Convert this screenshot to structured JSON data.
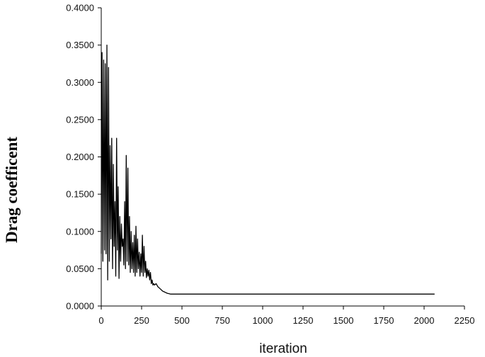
{
  "chart_data": {
    "type": "line",
    "title": "",
    "xlabel": "iteration",
    "ylabel": "Drag coefficent",
    "xlim": [
      0,
      2250
    ],
    "ylim": [
      0,
      0.4
    ],
    "xticks": [
      "0",
      "250",
      "500",
      "750",
      "1000",
      "1250",
      "1500",
      "1750",
      "2000",
      "2250"
    ],
    "yticks": [
      "0.0000",
      "0.0500",
      "0.1000",
      "0.1500",
      "0.2000",
      "0.2500",
      "0.3000",
      "0.3500",
      "0.4000"
    ],
    "grid": false,
    "series": [
      {
        "name": "",
        "color": "#000000",
        "x": [
          0,
          5,
          10,
          15,
          20,
          25,
          30,
          35,
          40,
          45,
          50,
          55,
          60,
          65,
          70,
          75,
          80,
          85,
          90,
          95,
          100,
          105,
          110,
          115,
          120,
          125,
          130,
          135,
          140,
          145,
          150,
          155,
          160,
          165,
          170,
          175,
          180,
          185,
          190,
          195,
          200,
          205,
          210,
          215,
          220,
          225,
          230,
          235,
          240,
          245,
          250,
          255,
          260,
          265,
          270,
          275,
          280,
          285,
          290,
          295,
          300,
          305,
          310,
          315,
          320,
          325,
          330,
          340,
          350,
          360,
          370,
          380,
          390,
          400,
          410,
          420,
          430,
          450,
          500,
          600,
          800,
          1000,
          1500,
          2000,
          2065
        ],
        "y": [
          0.07,
          0.34,
          0.06,
          0.33,
          0.075,
          0.325,
          0.07,
          0.35,
          0.035,
          0.32,
          0.06,
          0.215,
          0.09,
          0.225,
          0.05,
          0.19,
          0.08,
          0.14,
          0.04,
          0.225,
          0.075,
          0.16,
          0.037,
          0.12,
          0.06,
          0.11,
          0.08,
          0.09,
          0.055,
          0.14,
          0.05,
          0.202,
          0.06,
          0.185,
          0.055,
          0.12,
          0.045,
          0.1,
          0.05,
          0.085,
          0.045,
          0.095,
          0.04,
          0.107,
          0.045,
          0.09,
          0.05,
          0.072,
          0.04,
          0.07,
          0.045,
          0.095,
          0.04,
          0.08,
          0.045,
          0.06,
          0.038,
          0.05,
          0.04,
          0.048,
          0.035,
          0.045,
          0.03,
          0.035,
          0.028,
          0.03,
          0.028,
          0.03,
          0.026,
          0.024,
          0.022,
          0.02,
          0.019,
          0.018,
          0.017,
          0.0165,
          0.016,
          0.016,
          0.016,
          0.016,
          0.016,
          0.016,
          0.016,
          0.016,
          0.016
        ]
      }
    ]
  }
}
